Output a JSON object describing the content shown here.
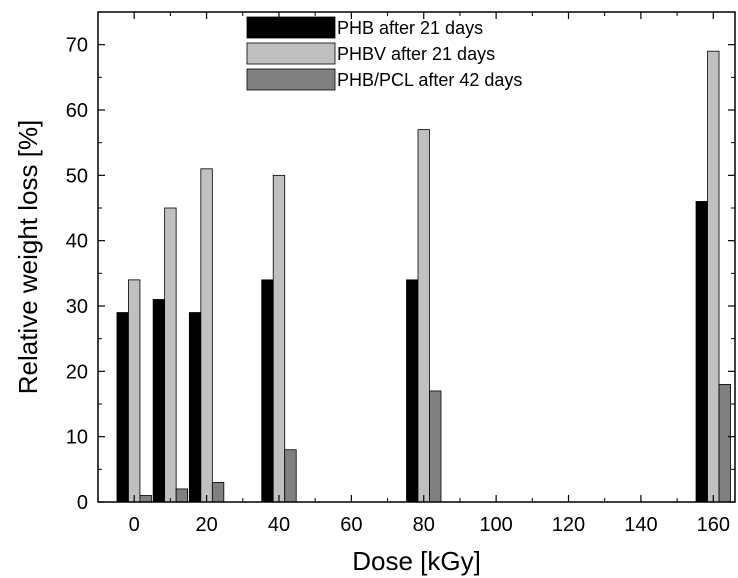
{
  "chart_data": {
    "type": "bar",
    "title": "",
    "xlabel": "Dose [kGy]",
    "ylabel": "Relative weight loss [%]",
    "xlim": [
      -10,
      166
    ],
    "ylim": [
      0,
      75
    ],
    "xticks": [
      0,
      20,
      40,
      60,
      80,
      100,
      120,
      140,
      160
    ],
    "yticks": [
      0,
      10,
      20,
      30,
      40,
      50,
      60,
      70
    ],
    "x_tick_labels": [
      "0",
      "20",
      "40",
      "60",
      "80",
      "100",
      "120",
      "140",
      "160"
    ],
    "y_tick_labels": [
      "0",
      "10",
      "20",
      "30",
      "40",
      "50",
      "60",
      "70"
    ],
    "grid": false,
    "legend_position": "top-center",
    "categories": [
      0,
      10,
      20,
      40,
      80,
      160
    ],
    "series": [
      {
        "name": "PHB after 21 days",
        "color": "#000000",
        "values": [
          29,
          31,
          29,
          34,
          34,
          46
        ]
      },
      {
        "name": "PHBV after 21 days",
        "color": "#c0c0c0",
        "values": [
          34,
          45,
          51,
          50,
          57,
          69
        ]
      },
      {
        "name": "PHB/PCL after 42 days",
        "color": "#808080",
        "values": [
          1,
          2,
          3,
          8,
          17,
          18
        ]
      }
    ]
  }
}
